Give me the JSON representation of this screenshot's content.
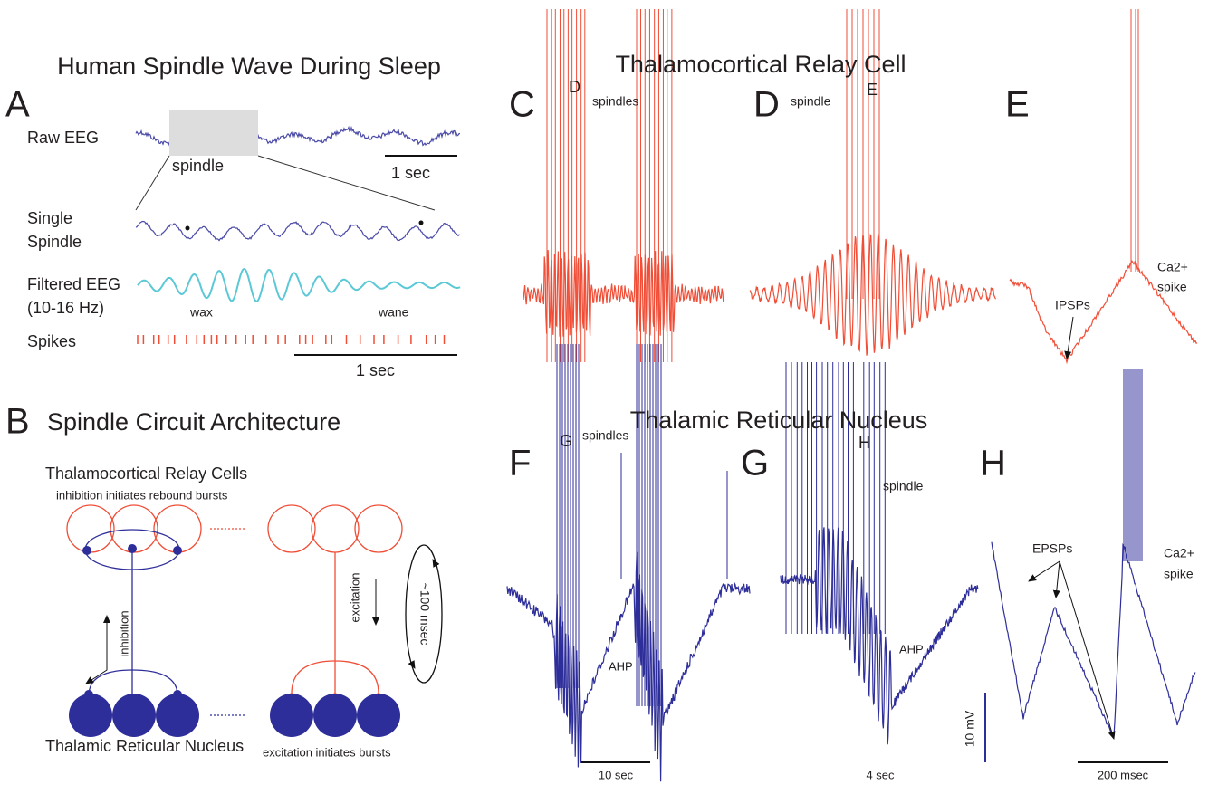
{
  "panel_a": {
    "title": "Human Spindle Wave During Sleep",
    "label": "A",
    "raw_eeg": "Raw EEG",
    "spindle": "spindle",
    "scale_raw": "1 sec",
    "single_spindle": [
      "Single",
      "Spindle"
    ],
    "filtered_eeg": [
      "Filtered EEG",
      "(10-16 Hz)"
    ],
    "wax": "wax",
    "wane": "wane",
    "spikes": "Spikes",
    "scale_spikes": "1 sec"
  },
  "panel_b": {
    "label": "B",
    "title": "Spindle Circuit Architecture",
    "relay_cells": "Thalamocortical Relay Cells",
    "relay_note": "inhibition initiates rebound bursts",
    "inhibition": "inhibition",
    "excitation": "excitation",
    "period": "~100 msec",
    "reticular_note": "excitation initiates bursts",
    "reticular": "Thalamic Reticular Nucleus"
  },
  "relay_cell": {
    "title": "Thalamocortical Relay Cell",
    "c": {
      "label": "C",
      "ref": "D",
      "note": "spindles"
    },
    "d": {
      "label": "D",
      "note": "spindle",
      "ref": "E"
    },
    "e": {
      "label": "E",
      "ipsps": "IPSPs",
      "ca_spike": [
        "Ca2+",
        "spike"
      ]
    }
  },
  "reticular_nucleus": {
    "title": "Thalamic Reticular Nucleus",
    "f": {
      "label": "F",
      "ref": "G",
      "note": "spindles",
      "ahp": "AHP",
      "scale": "10 sec"
    },
    "g": {
      "label": "G",
      "ref": "H",
      "note": "spindle",
      "ahp": "AHP",
      "scale": "4 sec"
    },
    "h": {
      "label": "H",
      "epsps": "EPSPs",
      "ca_spike": [
        "Ca2+",
        "spike"
      ],
      "scale_v": "10 mV",
      "scale_t": "200 msec"
    }
  }
}
